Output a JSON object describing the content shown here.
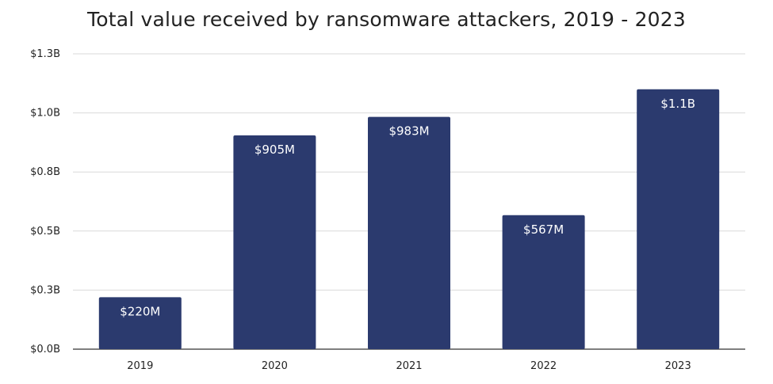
{
  "chart_data": {
    "type": "bar",
    "title": "Total value received by ransomware attackers, 2019 - 2023",
    "xlabel": "",
    "ylabel": "",
    "categories": [
      "2019",
      "2020",
      "2021",
      "2022",
      "2023"
    ],
    "values": [
      0.22,
      0.905,
      0.983,
      0.567,
      1.1
    ],
    "data_labels": [
      "$220M",
      "$905M",
      "$983M",
      "$567M",
      "$1.1B"
    ],
    "ylim": [
      0,
      1.25
    ],
    "yticks": [
      0,
      0.25,
      0.5,
      0.75,
      1.0,
      1.25
    ],
    "ytick_labels": [
      "$0.0B",
      "$0.3B",
      "$0.5B",
      "$0.8B",
      "$1.0B",
      "$1.3B"
    ],
    "grid": true,
    "bar_color": "#2b3a6e"
  }
}
